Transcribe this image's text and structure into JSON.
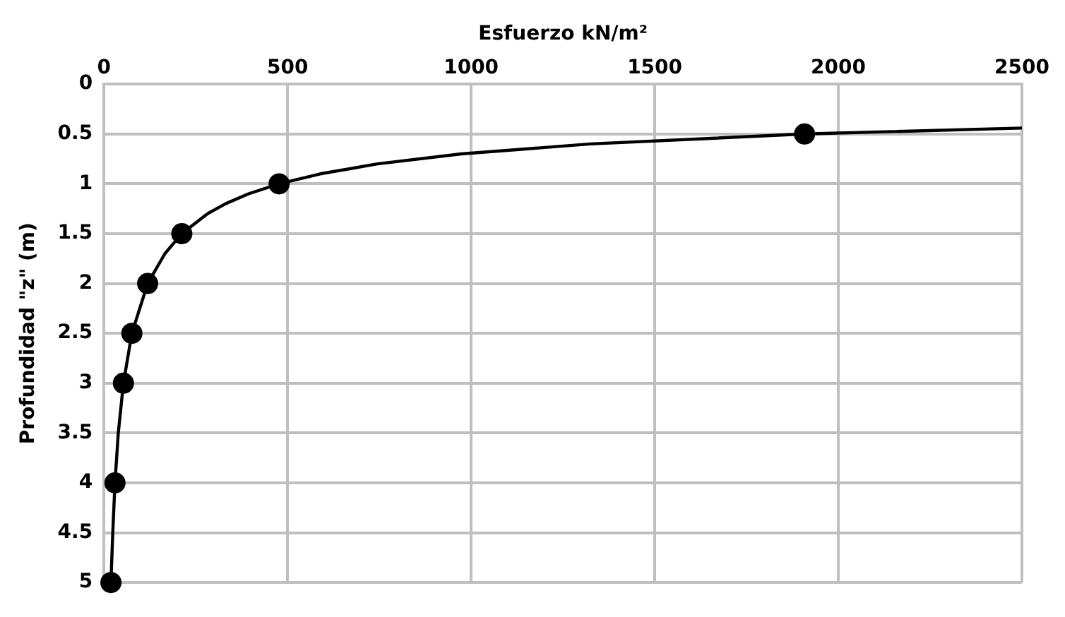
{
  "chart_data": {
    "type": "scatter",
    "xlabel": "Esfuerzo kN/m²",
    "ylabel": "Profundidad \"z\" (m)",
    "xlim": [
      0,
      2500
    ],
    "xticks": [
      0,
      500,
      1000,
      1500,
      2000,
      2500
    ],
    "ylim": [
      5,
      0
    ],
    "yticks": [
      0,
      0.5,
      1,
      1.5,
      2,
      2.5,
      3,
      3.5,
      4,
      4.5,
      5
    ],
    "grid": true,
    "legend": false,
    "series": [
      {
        "type": "line",
        "color": "#000000",
        "marker": "none",
        "line_style": "solid",
        "x": [
          2500,
          1908,
          1325,
          973,
          745,
          589,
          477,
          394,
          331,
          282,
          212,
          166,
          119,
          76,
          53,
          39,
          30,
          24,
          19
        ],
        "values": [
          0.44,
          0.5,
          0.6,
          0.7,
          0.8,
          0.9,
          1,
          1.1,
          1.2,
          1.3,
          1.5,
          1.7,
          2,
          2.5,
          3,
          3.5,
          4,
          4.5,
          5
        ]
      },
      {
        "color": "#000000",
        "marker": "circle",
        "x": [
          1908,
          477,
          212,
          119,
          76,
          53,
          30,
          19
        ],
        "values": [
          0.5,
          1,
          1.5,
          2,
          2.5,
          3,
          4,
          5
        ]
      }
    ]
  }
}
